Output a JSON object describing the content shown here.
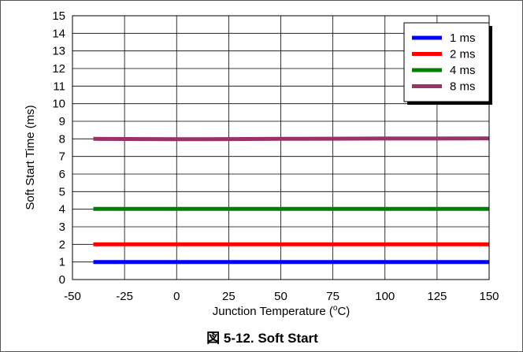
{
  "caption": "図 5-12. Soft Start",
  "chart_data": {
    "type": "line",
    "title": "",
    "xlabel": "Junction Temperature (°C)",
    "xlabel_parts": {
      "before": "Junction Temperature (",
      "sup": "o",
      "after": "C)"
    },
    "ylabel": "Soft Start Time (ms)",
    "xlim": [
      -50,
      150
    ],
    "ylim": [
      0,
      15
    ],
    "xticks": [
      -50,
      -25,
      0,
      25,
      50,
      75,
      100,
      125,
      150
    ],
    "yticks": [
      0,
      1,
      2,
      3,
      4,
      5,
      6,
      7,
      8,
      9,
      10,
      11,
      12,
      13,
      14,
      15
    ],
    "grid": true,
    "legend_position": "top-right",
    "series": [
      {
        "name": "1 ms",
        "color": "#0000ff",
        "x": [
          -40,
          0,
          25,
          50,
          75,
          100,
          125,
          150
        ],
        "y": [
          1.0,
          1.0,
          1.0,
          1.0,
          1.0,
          1.0,
          1.0,
          1.0
        ]
      },
      {
        "name": "2 ms",
        "color": "#ff0000",
        "x": [
          -40,
          0,
          25,
          50,
          75,
          100,
          125,
          150
        ],
        "y": [
          2.0,
          2.0,
          2.0,
          2.0,
          2.0,
          2.0,
          2.0,
          2.0
        ]
      },
      {
        "name": "4 ms",
        "color": "#008000",
        "x": [
          -40,
          0,
          25,
          50,
          75,
          100,
          125,
          150
        ],
        "y": [
          4.02,
          4.02,
          4.02,
          4.02,
          4.02,
          4.02,
          4.02,
          4.02
        ]
      },
      {
        "name": "8 ms",
        "color": "#993366",
        "x": [
          -40,
          0,
          25,
          50,
          75,
          100,
          125,
          150
        ],
        "y": [
          8.0,
          7.98,
          7.99,
          8.0,
          8.01,
          8.02,
          8.02,
          8.03
        ]
      }
    ]
  }
}
